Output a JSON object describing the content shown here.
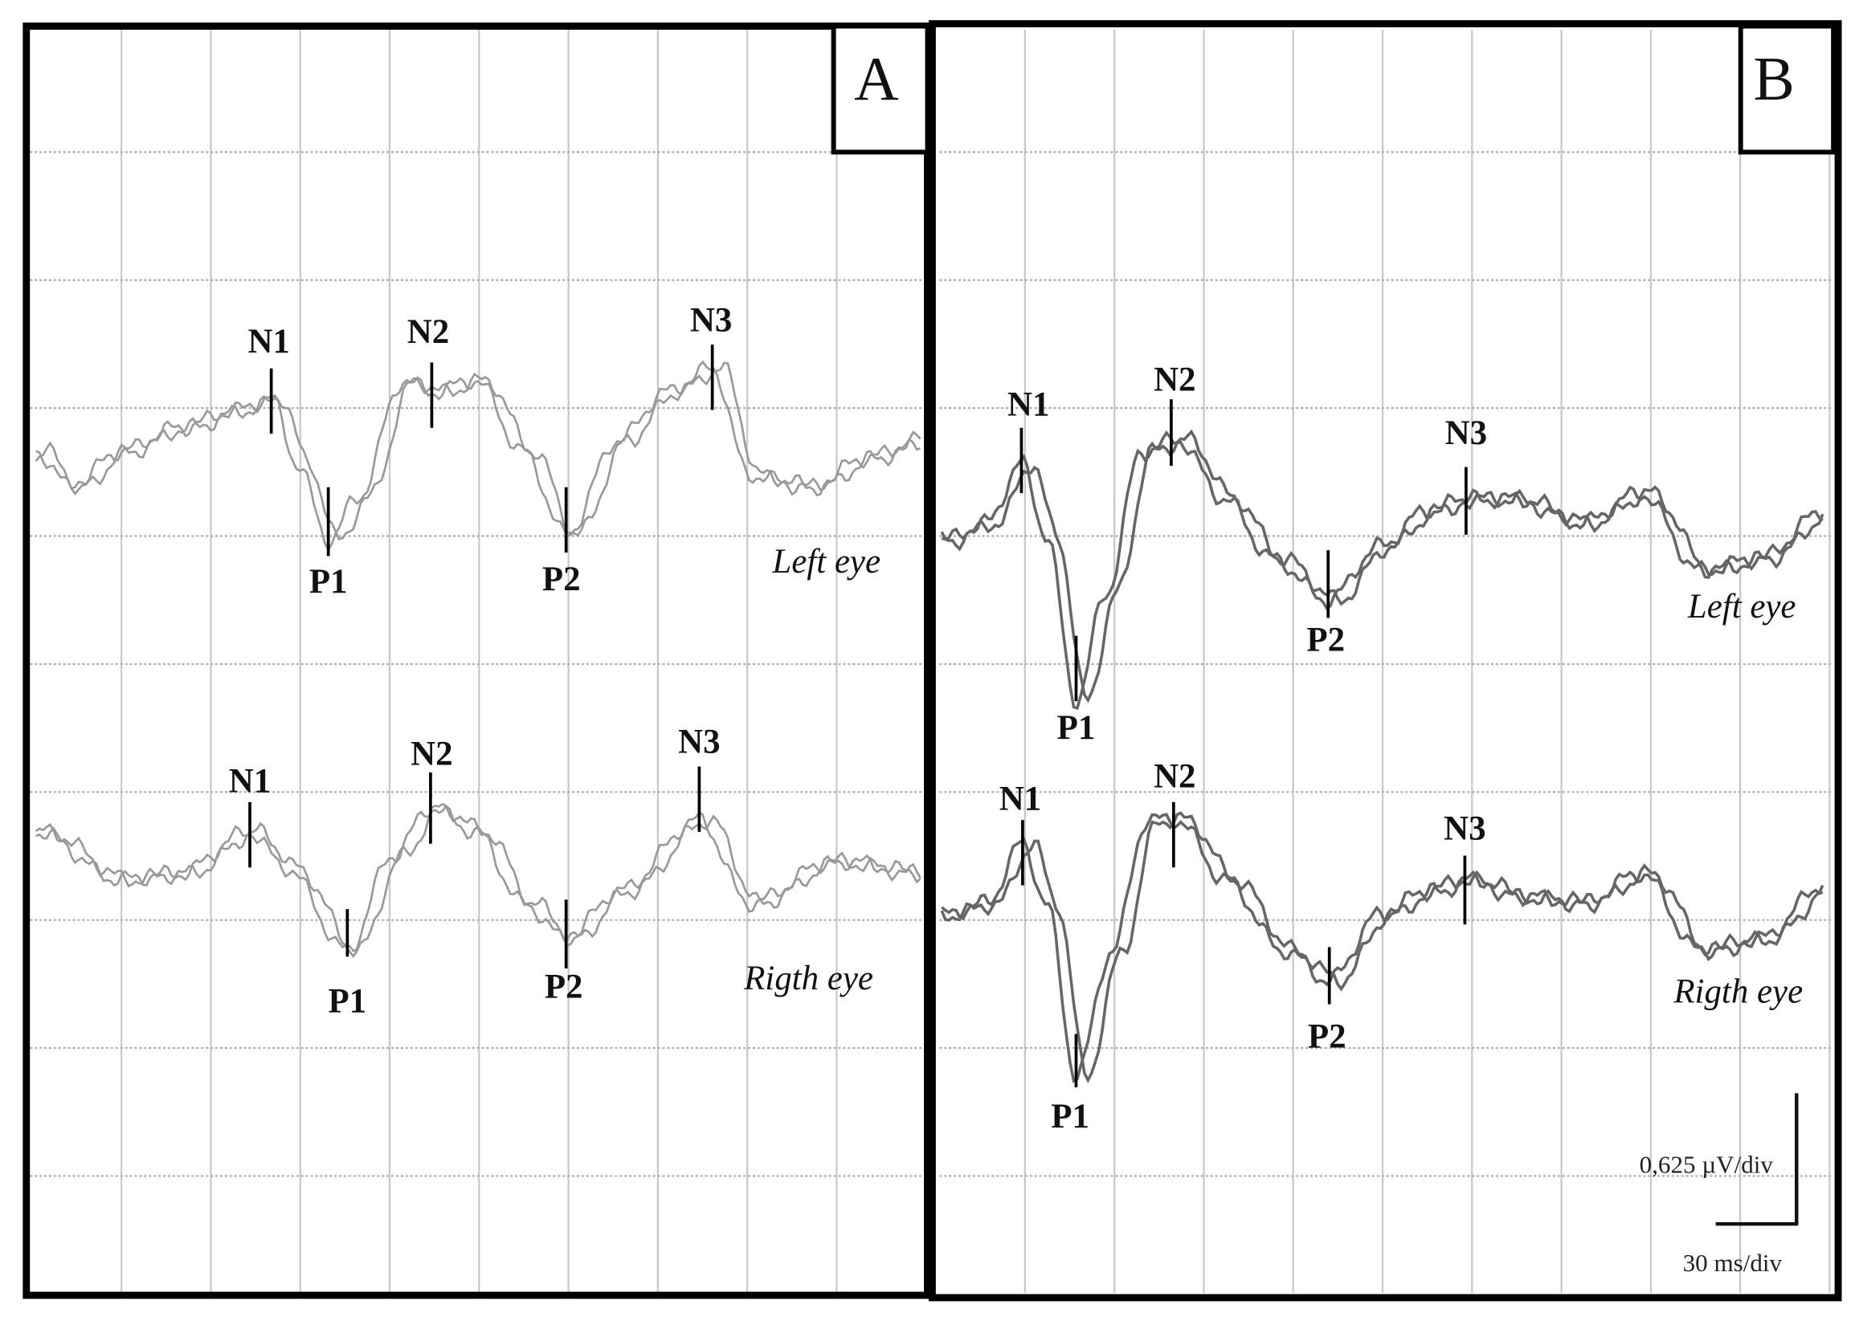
{
  "panels": [
    {
      "label": "A",
      "traces": [
        {
          "name": "Left eye",
          "peaks": [
            "N1",
            "P1",
            "N2",
            "P2",
            "N3"
          ]
        },
        {
          "name": "Rigth eye",
          "peaks": [
            "N1",
            "P1",
            "N2",
            "P2",
            "N3"
          ]
        }
      ]
    },
    {
      "label": "B",
      "traces": [
        {
          "name": "Left eye",
          "peaks": [
            "N1",
            "P1",
            "N2",
            "P2",
            "N3"
          ]
        },
        {
          "name": "Rigth eye",
          "peaks": [
            "N1",
            "P1",
            "N2",
            "P2",
            "N3"
          ]
        }
      ]
    }
  ],
  "scale": {
    "vertical": "0,625 µV/div",
    "horizontal": "30 ms/div"
  }
}
